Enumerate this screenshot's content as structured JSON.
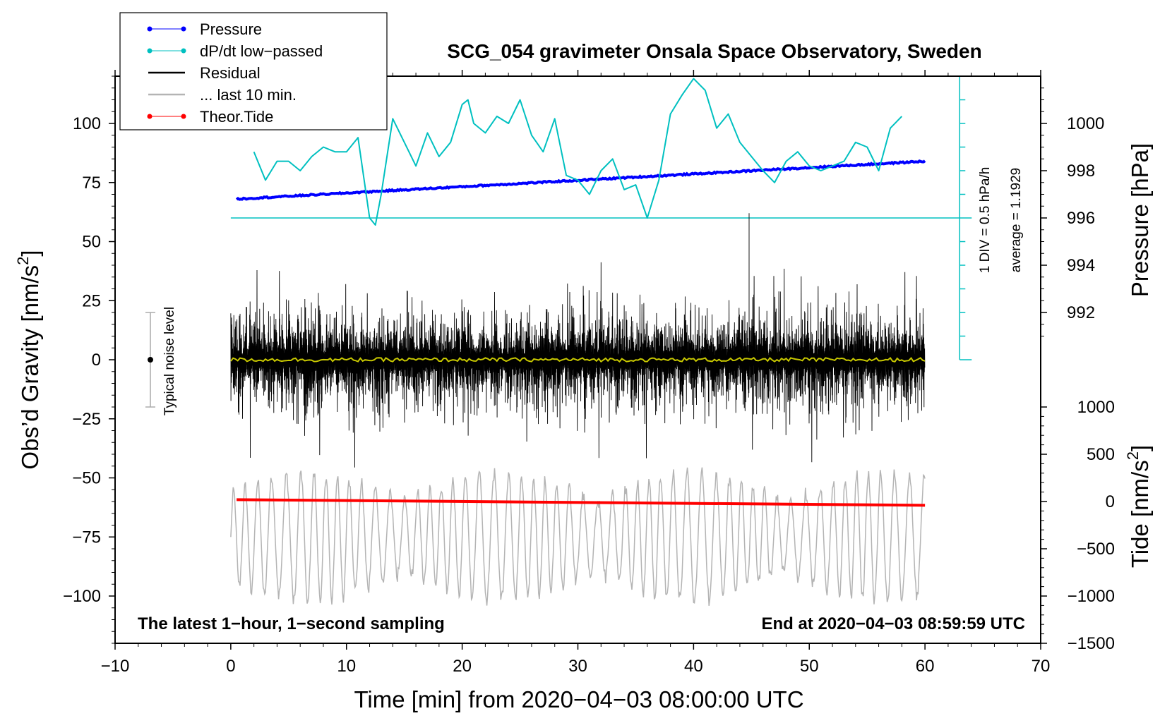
{
  "chart_data": {
    "type": "line",
    "title": "SCG_054 gravimeter Onsala Space Observatory, Sweden",
    "xlabel": "Time [min] from 2020−04−03 08:00:00 UTC",
    "ylabel_left": "Obs’d Gravity [nm/s",
    "ylabel_left_sup": "2",
    "ylabel_left_close": "]",
    "ylabel_pressure": "Pressure [hPa]",
    "ylabel_tide": "Tide [nm/s",
    "ylabel_tide_sup": "2",
    "ylabel_tide_close": "]",
    "xlim": [
      -10,
      70
    ],
    "ylim_gravity": [
      -120,
      120
    ],
    "x_ticks": [
      "−10",
      "0",
      "10",
      "20",
      "30",
      "40",
      "50",
      "60",
      "70"
    ],
    "y_ticks_gravity": [
      "100",
      "75",
      "50",
      "25",
      "0",
      "−25",
      "−50",
      "−75",
      "−100"
    ],
    "y_ticks_pressure": [
      "1000",
      "998",
      "996",
      "994",
      "992"
    ],
    "y_ticks_tide": [
      "1000",
      "500",
      "0",
      "−500",
      "−1000",
      "−1500"
    ],
    "legend": [
      {
        "label": "Pressure",
        "color": "#0000ff",
        "marker": "dot"
      },
      {
        "label": "dP/dt low−passed",
        "color": "#00c0c0",
        "marker": "dot"
      },
      {
        "label": "Residual",
        "color": "#000000",
        "marker": "line"
      },
      {
        "label": "... last 10 min.",
        "color": "#b4b4b4",
        "marker": "line"
      },
      {
        "label": "Theor.Tide",
        "color": "#ff0000",
        "marker": "dot"
      }
    ],
    "legend_position": "top-left",
    "series": {
      "pressure_hPa": {
        "name": "Pressure",
        "x": [
          0.5,
          60
        ],
        "y": [
          996.8,
          998.4
        ]
      },
      "dpdt": {
        "name": "dP/dt low−passed",
        "x": [
          2,
          3,
          4,
          5,
          6,
          7,
          8,
          9,
          10,
          11,
          12,
          12.5,
          13,
          14,
          15,
          16,
          17,
          18,
          19,
          20,
          20.5,
          21,
          22,
          23,
          24,
          25,
          26,
          27,
          28,
          29,
          30,
          31,
          32,
          33,
          34,
          35,
          36,
          37,
          38,
          39,
          40,
          41,
          42,
          43,
          44,
          45,
          46,
          47,
          48,
          49,
          50,
          51,
          52,
          53,
          54,
          55,
          56,
          57,
          58
        ],
        "y": [
          88,
          76,
          84,
          84,
          80,
          86,
          90,
          88,
          88,
          94,
          60,
          57,
          70,
          102,
          92,
          82,
          96,
          86,
          92,
          108,
          110,
          100,
          96,
          103,
          100,
          110,
          95,
          88,
          102,
          78,
          76,
          70,
          80,
          85,
          72,
          74,
          60,
          76,
          104,
          112,
          119,
          114,
          98,
          104,
          92,
          86,
          80,
          75,
          84,
          88,
          82,
          80,
          82,
          84,
          92,
          90,
          80,
          98,
          103
        ]
      },
      "residual": {
        "name": "Residual",
        "amplitude_typical": 15,
        "amplitude_max": 62,
        "x_range": [
          0,
          60
        ]
      },
      "residual_smoothed": {
        "name": "Residual (smoothed)",
        "color": "#c8c800",
        "value": 0
      },
      "last10": {
        "name": "... last 10 min.",
        "x_range": [
          0,
          60
        ]
      },
      "tide": {
        "name": "Theor.Tide",
        "x": [
          0.5,
          60
        ],
        "y": [
          20,
          -40
        ]
      }
    },
    "dpdt_scale_label": "1 DIV = 0.5 hPa/h",
    "dpdt_average_label": "average = 1.1929",
    "noise_label": "Typical noise level",
    "noise_range": [
      -20,
      20
    ],
    "note_left": "The latest 1−hour, 1−second sampling",
    "note_right": "End at 2020−04−03 08:59:59 UTC"
  }
}
